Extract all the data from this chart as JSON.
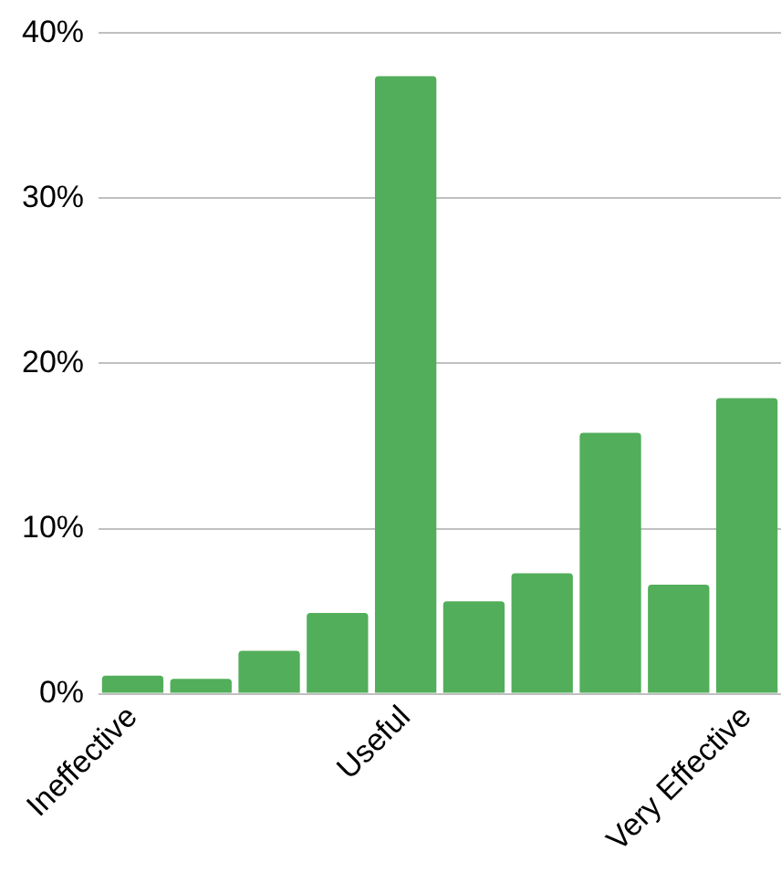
{
  "chart_data": {
    "type": "bar",
    "categories": [
      "Ineffective",
      null,
      null,
      null,
      "Useful",
      null,
      null,
      null,
      null,
      "Very Effective"
    ],
    "values": [
      1.1,
      0.9,
      2.6,
      4.9,
      37.4,
      5.6,
      7.3,
      15.8,
      6.6,
      17.9
    ],
    "color": "#52ae5a",
    "ylim": [
      0,
      40
    ],
    "yticks": [
      {
        "value": 0,
        "label": "0%"
      },
      {
        "value": 10,
        "label": "10%"
      },
      {
        "value": 20,
        "label": "20%"
      },
      {
        "value": 30,
        "label": "30%"
      },
      {
        "value": 40,
        "label": "40%"
      }
    ],
    "grid": "y"
  }
}
